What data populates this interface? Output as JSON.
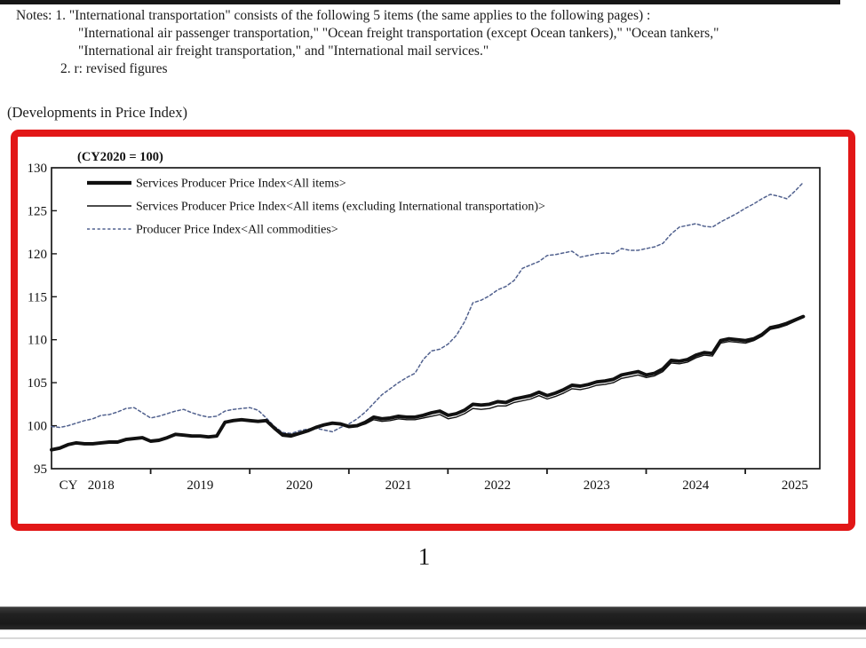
{
  "page": {
    "notes": {
      "line1": "Notes: 1. \"International transportation\" consists of the following 5 items (the same applies to the following pages) :",
      "line2": "\"International air passenger transportation,\" \"Ocean freight transportation (except Ocean tankers),\" \"Ocean tankers,\"",
      "line3": "\"International air freight transportation,\" and \"International mail services.\"",
      "line4": "2. r: revised figures"
    },
    "section_heading": "(Developments in Price Index)",
    "page_number": "1"
  },
  "chart_data": {
    "type": "line",
    "unit_note": "(CY2020 = 100)",
    "x_axis_prefix": "CY",
    "x_years": [
      "2018",
      "2019",
      "2020",
      "2021",
      "2022",
      "2023",
      "2024",
      "2025"
    ],
    "y_ticks": [
      130,
      125,
      120,
      115,
      110,
      105,
      100,
      95
    ],
    "ylim": [
      95,
      130
    ],
    "x_frequency": "monthly",
    "x_start": "2018-01",
    "x_end": "2025-08",
    "grid": false,
    "legend_position": "top-left-inside",
    "frame_color": "#1a1a1a",
    "highlight_border_color": "#e21717",
    "series": [
      {
        "name": "Services Producer Price Index<All items>",
        "style": "solid-thick",
        "color": "#111111",
        "values": [
          97.2,
          97.4,
          97.8,
          98.0,
          97.9,
          97.9,
          98.0,
          98.1,
          98.1,
          98.4,
          98.5,
          98.6,
          98.2,
          98.3,
          98.6,
          99.0,
          98.9,
          98.8,
          98.8,
          98.7,
          98.8,
          100.4,
          100.6,
          100.7,
          100.6,
          100.5,
          100.6,
          99.7,
          98.9,
          98.8,
          99.1,
          99.4,
          99.8,
          100.1,
          100.3,
          100.2,
          99.9,
          100.0,
          100.4,
          101.0,
          100.8,
          100.9,
          101.1,
          101.0,
          101.0,
          101.2,
          101.5,
          101.7,
          101.2,
          101.4,
          101.8,
          102.5,
          102.4,
          102.5,
          102.8,
          102.7,
          103.1,
          103.3,
          103.5,
          103.9,
          103.5,
          103.8,
          104.2,
          104.7,
          104.6,
          104.8,
          105.1,
          105.2,
          105.4,
          105.9,
          106.1,
          106.3,
          105.9,
          106.1,
          106.6,
          107.6,
          107.5,
          107.7,
          108.2,
          108.5,
          108.4,
          109.9,
          110.1,
          110.0,
          109.9,
          110.1,
          110.6,
          111.4,
          111.6,
          111.9,
          112.3,
          112.7
        ]
      },
      {
        "name": "Services Producer Price Index<All items (excluding International transportation)>",
        "style": "solid-thin",
        "color": "#111111",
        "values": [
          97.2,
          97.4,
          97.8,
          98.0,
          97.9,
          97.9,
          98.0,
          98.1,
          98.1,
          98.4,
          98.5,
          98.6,
          98.2,
          98.3,
          98.6,
          99.0,
          98.9,
          98.8,
          98.8,
          98.7,
          98.8,
          100.4,
          100.6,
          100.7,
          100.6,
          100.5,
          100.6,
          99.8,
          99.1,
          99.0,
          99.2,
          99.5,
          99.9,
          100.1,
          100.3,
          100.2,
          99.9,
          99.9,
          100.2,
          100.7,
          100.5,
          100.6,
          100.8,
          100.7,
          100.7,
          100.9,
          101.1,
          101.3,
          100.8,
          101.0,
          101.4,
          102.0,
          101.9,
          102.0,
          102.3,
          102.3,
          102.7,
          102.9,
          103.1,
          103.5,
          103.1,
          103.4,
          103.8,
          104.3,
          104.2,
          104.4,
          104.7,
          104.8,
          105.0,
          105.5,
          105.7,
          105.9,
          105.6,
          105.8,
          106.3,
          107.3,
          107.2,
          107.4,
          107.9,
          108.2,
          108.1,
          109.6,
          109.8,
          109.7,
          109.6,
          109.9,
          110.4,
          111.2,
          111.4,
          111.7,
          112.15,
          112.6
        ]
      },
      {
        "name": "Producer Price Index<All commodities>",
        "style": "dashed",
        "color": "#51618e",
        "values": [
          99.9,
          99.8,
          100.0,
          100.3,
          100.6,
          100.8,
          101.2,
          101.3,
          101.6,
          102.0,
          102.1,
          101.5,
          100.9,
          101.1,
          101.4,
          101.7,
          101.9,
          101.5,
          101.2,
          101.0,
          101.1,
          101.7,
          101.9,
          102.0,
          102.1,
          101.8,
          100.9,
          99.9,
          99.2,
          99.1,
          99.4,
          99.6,
          99.7,
          99.5,
          99.3,
          99.8,
          100.2,
          100.8,
          101.6,
          102.6,
          103.6,
          104.3,
          105.0,
          105.6,
          106.1,
          107.7,
          108.7,
          108.9,
          109.5,
          110.5,
          112.1,
          114.3,
          114.6,
          115.1,
          115.8,
          116.2,
          116.9,
          118.3,
          118.7,
          119.1,
          119.8,
          119.9,
          120.1,
          120.3,
          119.6,
          119.8,
          120.0,
          120.1,
          120.0,
          120.6,
          120.4,
          120.4,
          120.6,
          120.8,
          121.2,
          122.3,
          123.1,
          123.3,
          123.5,
          123.2,
          123.1,
          123.7,
          124.2,
          124.7,
          125.3,
          125.8,
          126.4,
          126.9,
          126.7,
          126.4,
          127.3,
          128.3
        ]
      }
    ]
  }
}
